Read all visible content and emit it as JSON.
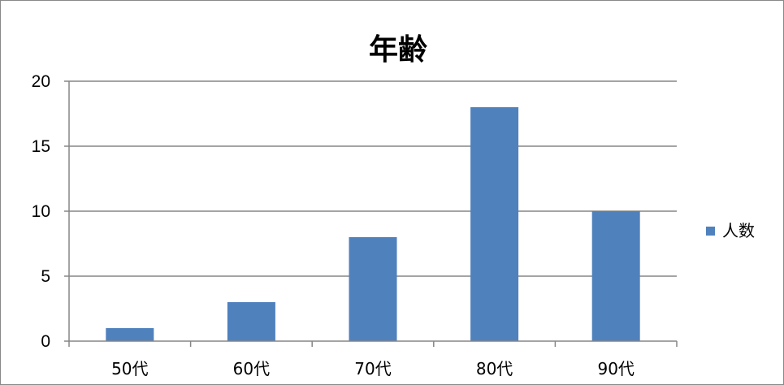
{
  "chart_data": {
    "type": "bar",
    "title": "年齢",
    "categories": [
      "50代",
      "60代",
      "70代",
      "80代",
      "90代"
    ],
    "series": [
      {
        "name": "人数",
        "values": [
          1,
          3,
          8,
          18,
          10
        ],
        "color": "#4F81BD"
      }
    ],
    "ylim": [
      0,
      20
    ],
    "yticks": [
      0,
      5,
      10,
      15,
      20
    ],
    "grid": true,
    "legend_position": "right",
    "xlabel": "",
    "ylabel": ""
  }
}
